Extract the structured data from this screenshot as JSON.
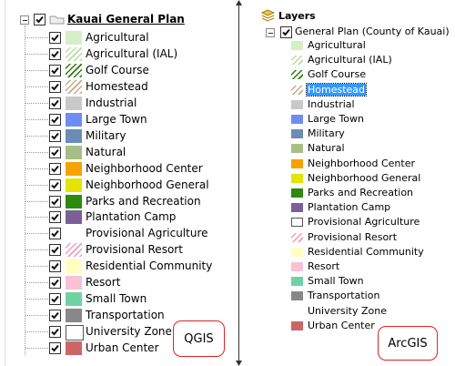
{
  "qgis": {
    "group": "Kauai General Plan",
    "caption": "QGIS",
    "items": [
      {
        "label": "Agricultural",
        "color": "#d8eec6"
      },
      {
        "label": "Agricultural (IAL)",
        "color": "#b7dba0",
        "hatch": true
      },
      {
        "label": "Golf Course",
        "color": "#2f7a12",
        "hatch": true
      },
      {
        "label": "Homestead",
        "color": "#c7a98c",
        "hatch": true
      },
      {
        "label": "Industrial",
        "color": "#c9c9c9"
      },
      {
        "label": "Large Town",
        "color": "#6d8ef0"
      },
      {
        "label": "Military",
        "color": "#6b8db5"
      },
      {
        "label": "Natural",
        "color": "#a7bf86"
      },
      {
        "label": "Neighborhood Center",
        "color": "#f6a300"
      },
      {
        "label": "Neighborhood General",
        "color": "#e3e400"
      },
      {
        "label": "Parks and Recreation",
        "color": "#2c8a0c"
      },
      {
        "label": "Plantation Camp",
        "color": "#7a5f98"
      },
      {
        "label": "Provisional Agriculture",
        "color": "#ffffff"
      },
      {
        "label": "Provisional Resort",
        "color": "#f09ac0",
        "hatch": true
      },
      {
        "label": "Residential Community",
        "color": "#ffffc2"
      },
      {
        "label": "Resort",
        "color": "#f8c2d2"
      },
      {
        "label": "Small Town",
        "color": "#70d2a2"
      },
      {
        "label": "Transportation",
        "color": "#888888"
      },
      {
        "label": "University Zone",
        "color": "#ffffff",
        "border": true
      },
      {
        "label": "Urban Center",
        "color": "#cc6666"
      }
    ]
  },
  "arcgis": {
    "root": "Layers",
    "layer": "General Plan (County of Kauai)",
    "caption": "ArcGIS",
    "selected": 3,
    "items": [
      {
        "label": "Agricultural",
        "color": "#d8eec6"
      },
      {
        "label": "Agricultural (IAL)",
        "color": "#b7dba0",
        "hatch": true
      },
      {
        "label": "Golf Course",
        "color": "#2f7a12",
        "hatch": true
      },
      {
        "label": "Homestead",
        "color": "#c7a98c",
        "hatch": true
      },
      {
        "label": "Industrial",
        "color": "#c9c9c9"
      },
      {
        "label": "Large Town",
        "color": "#6d8ef0"
      },
      {
        "label": "Military",
        "color": "#6b8db5"
      },
      {
        "label": "Natural",
        "color": "#a7bf86"
      },
      {
        "label": "Neighborhood Center",
        "color": "#f6a300"
      },
      {
        "label": "Neighborhood General",
        "color": "#e3e400"
      },
      {
        "label": "Parks and Recreation",
        "color": "#2c8a0c"
      },
      {
        "label": "Plantation Camp",
        "color": "#7a5f98"
      },
      {
        "label": "Provisional Agriculture",
        "color": "#ffffff",
        "border": true
      },
      {
        "label": "Provisional Resort",
        "color": "#f09ac0",
        "hatch": true
      },
      {
        "label": "Residential Community",
        "color": "#ffffc2"
      },
      {
        "label": "Resort",
        "color": "#f8c2d2"
      },
      {
        "label": "Small Town",
        "color": "#70d2a2"
      },
      {
        "label": "Transportation",
        "color": "#888888"
      },
      {
        "label": "University Zone",
        "color": "#ffffff"
      },
      {
        "label": "Urban Center",
        "color": "#cc6666"
      }
    ]
  }
}
